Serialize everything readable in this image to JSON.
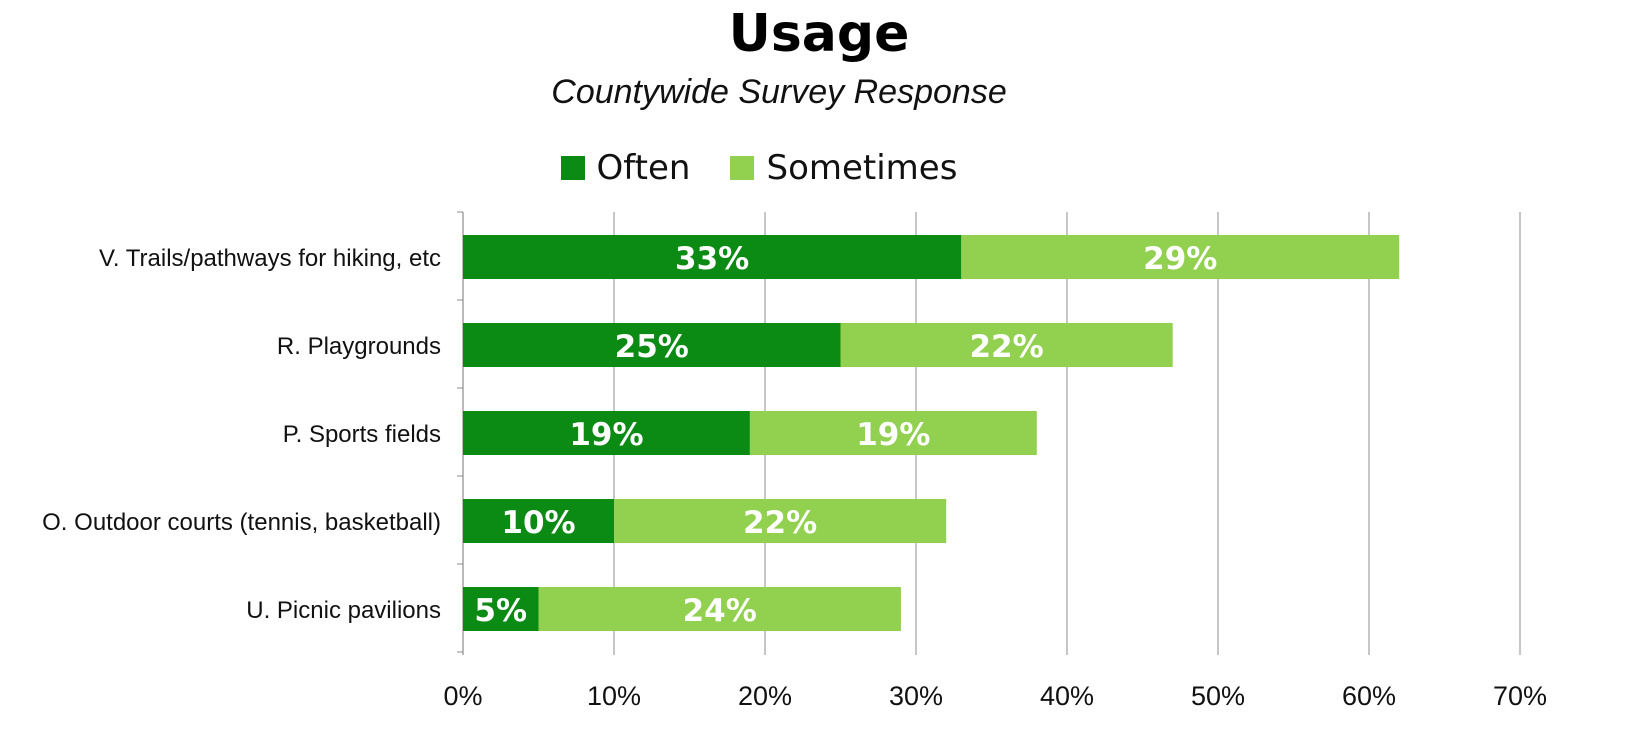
{
  "chart_data": {
    "type": "bar",
    "orientation": "horizontal",
    "stacked": true,
    "title": "Usage",
    "subtitle": "Countywide Survey Response",
    "categories": [
      "V. Trails/pathways for hiking, etc",
      "R. Playgrounds",
      "P. Sports fields",
      "O. Outdoor courts (tennis, basketball)",
      "U. Picnic pavilions"
    ],
    "series": [
      {
        "name": "Often",
        "color": "#0b8a14",
        "values": [
          33,
          25,
          19,
          10,
          5
        ],
        "labels": [
          "33%",
          "25%",
          "19%",
          "10%",
          "5%"
        ]
      },
      {
        "name": "Sometimes",
        "color": "#92d050",
        "values": [
          29,
          22,
          19,
          22,
          24
        ],
        "labels": [
          "29%",
          "22%",
          "19%",
          "22%",
          "24%"
        ]
      }
    ],
    "xlim": [
      0,
      70
    ],
    "xticks": [
      "0%",
      "10%",
      "20%",
      "30%",
      "40%",
      "50%",
      "60%",
      "70%"
    ],
    "grid": true,
    "legend_position": "top"
  }
}
